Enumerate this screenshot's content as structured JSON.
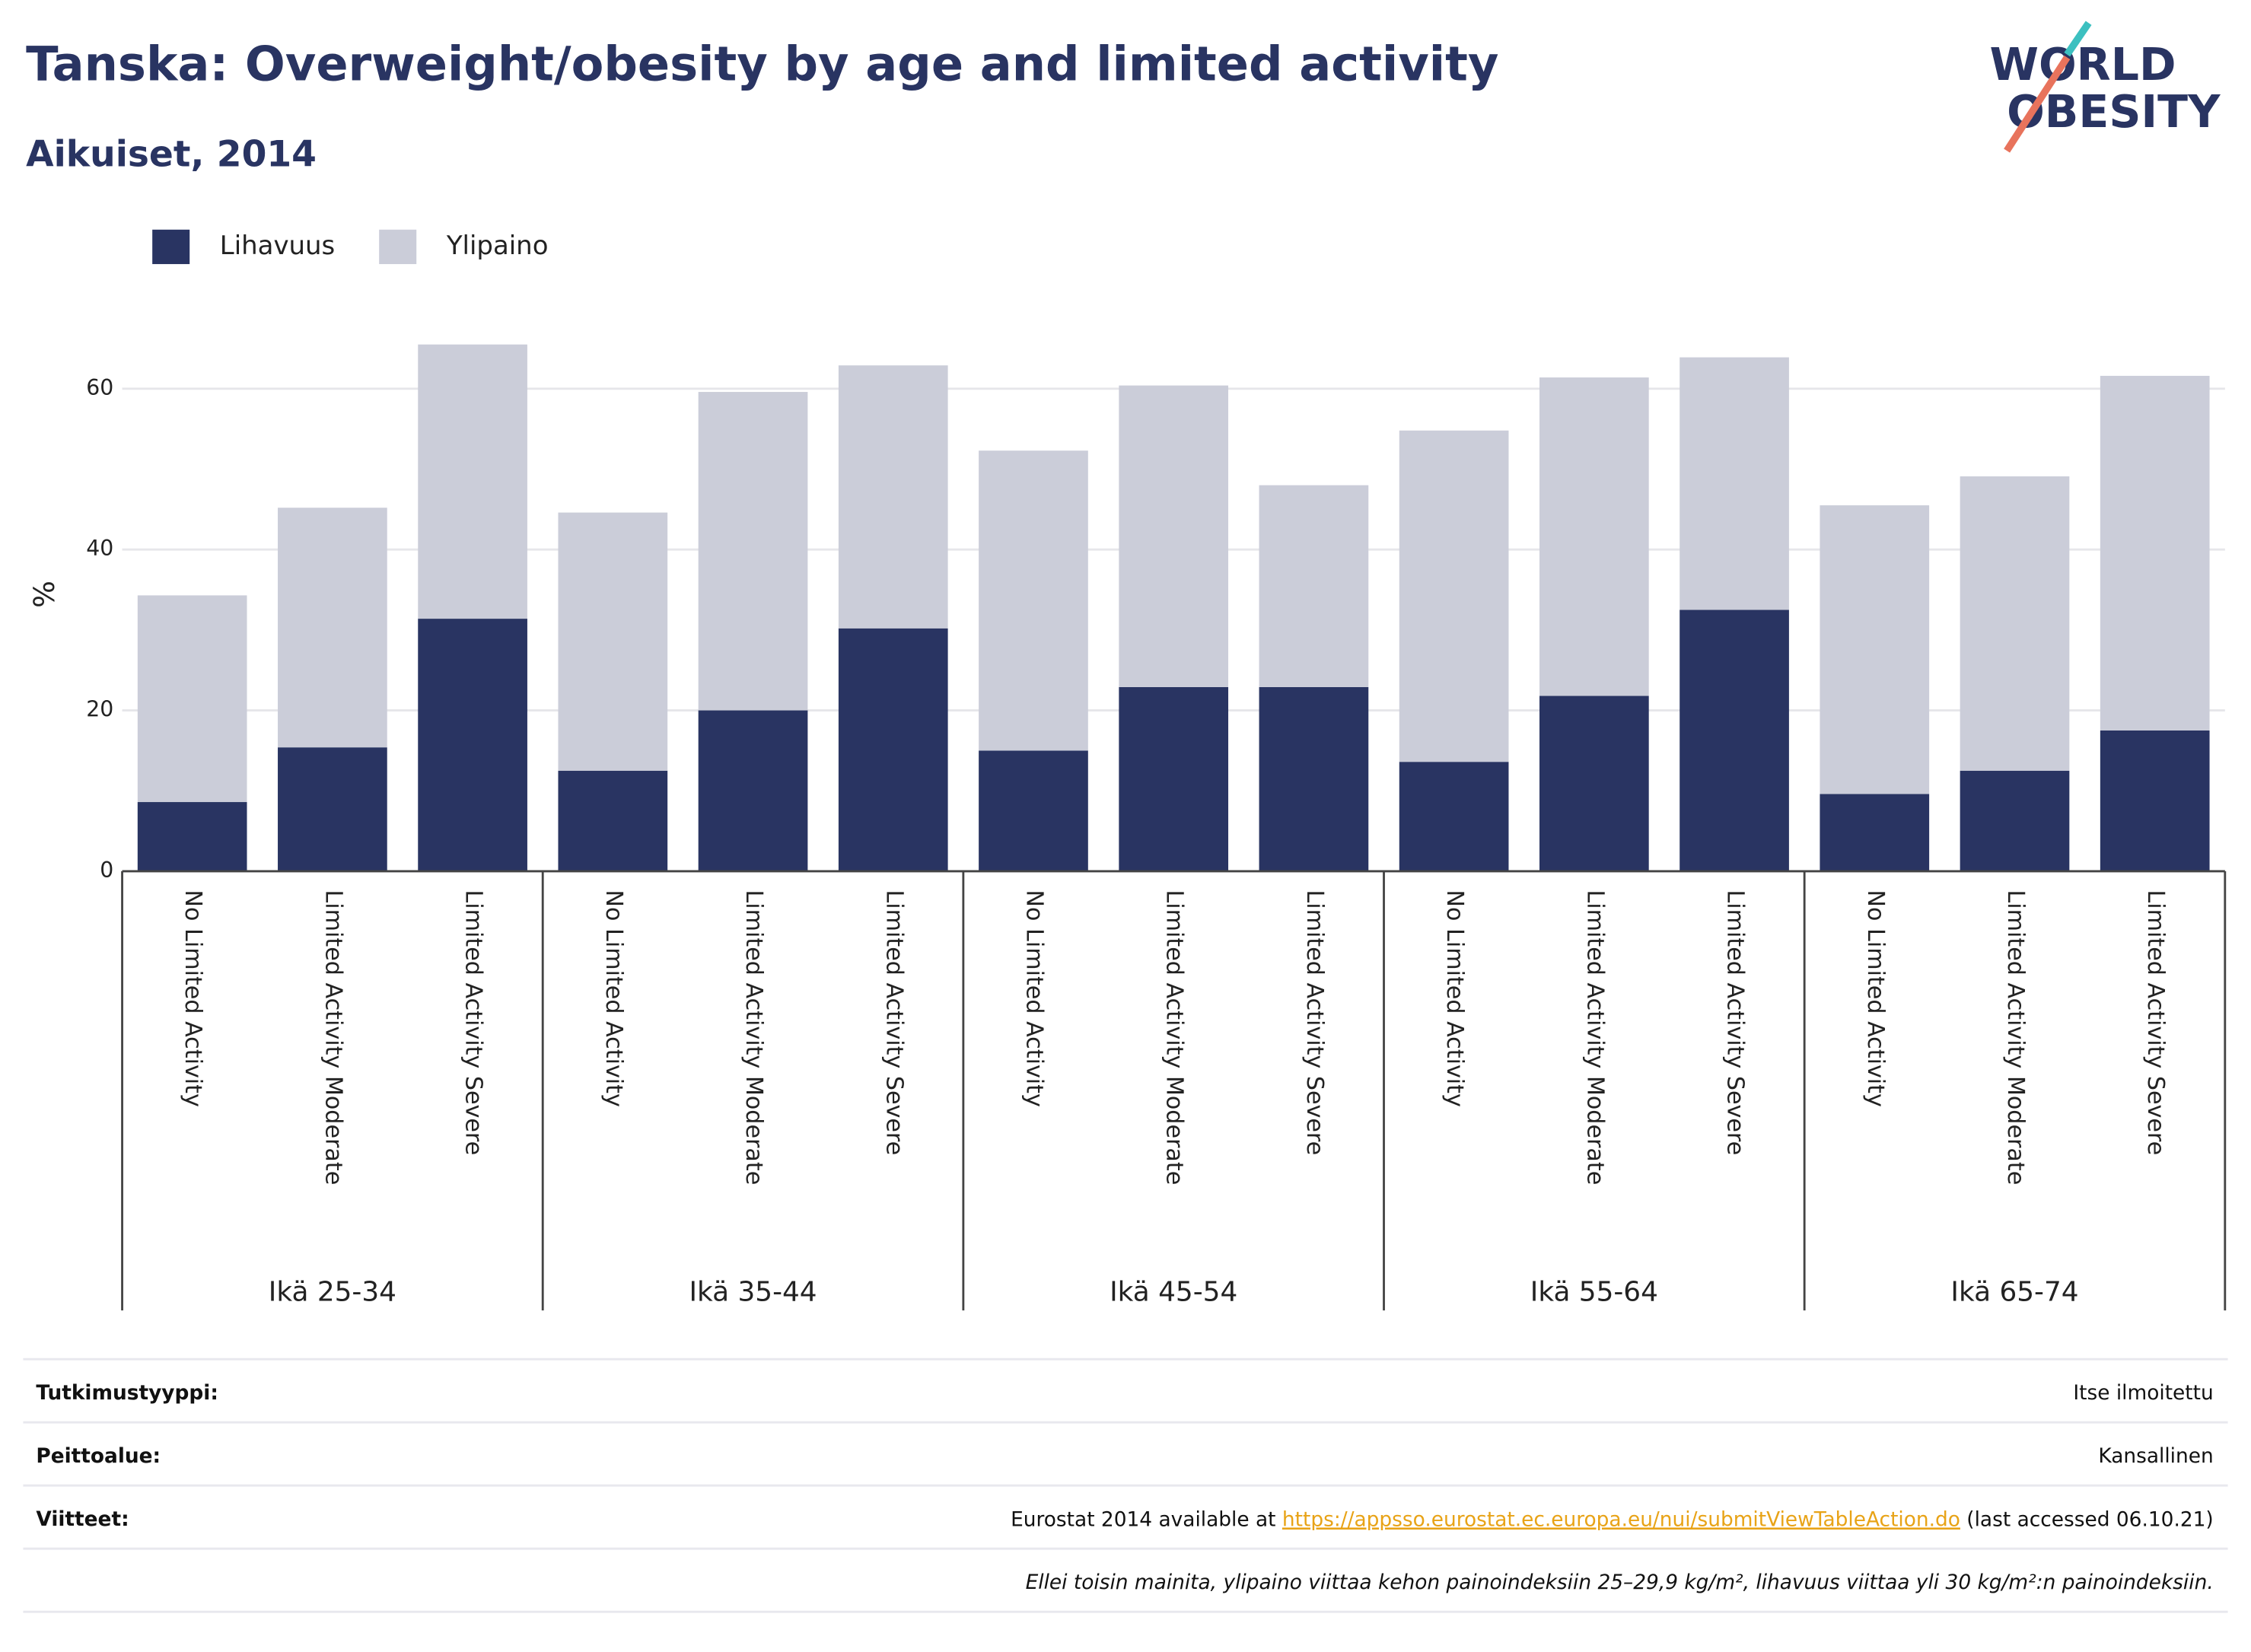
{
  "chart_data": {
    "type": "stacked_bar",
    "title": "Tanska: Overweight/obesity by age and limited activity",
    "subtitle": "Aikuiset, 2014",
    "y_label": "%",
    "logo": [
      "WORLD",
      "OBESITY"
    ],
    "groups": [
      "Ikä 25-34",
      "Ikä 35-44",
      "Ikä 45-54",
      "Ikä 55-64",
      "Ikä 65-74"
    ],
    "categories": [
      "No Limited Activity",
      "Limited Activity Moderate",
      "Limited Activity Severe",
      "No Limited Activity",
      "Limited Activity Moderate",
      "Limited Activity Severe",
      "No Limited Activity",
      "Limited Activity Moderate",
      "Limited Activity Severe",
      "No Limited Activity",
      "Limited Activity Moderate",
      "Limited Activity Severe",
      "No Limited Activity",
      "Limited Activity Moderate",
      "Limited Activity Severe"
    ],
    "series": [
      {
        "name": "Lihavuus",
        "color": "#293462",
        "values": [
          8.6,
          15.4,
          31.4,
          12.5,
          20.0,
          30.2,
          15.0,
          22.9,
          22.9,
          13.6,
          21.8,
          32.5,
          9.6,
          12.5,
          17.5
        ]
      },
      {
        "name": "Ylipaino",
        "color": "#cbcdd9",
        "values": [
          25.7,
          29.8,
          34.1,
          32.1,
          39.6,
          32.7,
          37.3,
          37.5,
          25.1,
          41.2,
          39.6,
          31.4,
          35.9,
          36.6,
          44.1
        ]
      }
    ],
    "ylim": [
      0,
      68
    ],
    "yticks": [
      0,
      20,
      40,
      60
    ],
    "grid": true,
    "legend": "top-left"
  },
  "footer": {
    "rows": [
      {
        "label": "Tutkimustyyppi:",
        "value": "Itse ilmoitettu"
      },
      {
        "label": "Peittoalue:",
        "value": "Kansallinen"
      },
      {
        "label": "Viitteet:",
        "value": "Eurostat 2014 available at ",
        "link": "https://appsso.eurostat.ec.europa.eu/nui/submitViewTableAction.do",
        "value_end": " (last accessed 06.10.21)"
      }
    ],
    "note": "Ellei toisin mainita, ylipaino viittaa kehon painoindeksiin 25–29,9 kg/m², lihavuus viittaa yli 30 kg/m²:n painoindeksiin."
  }
}
